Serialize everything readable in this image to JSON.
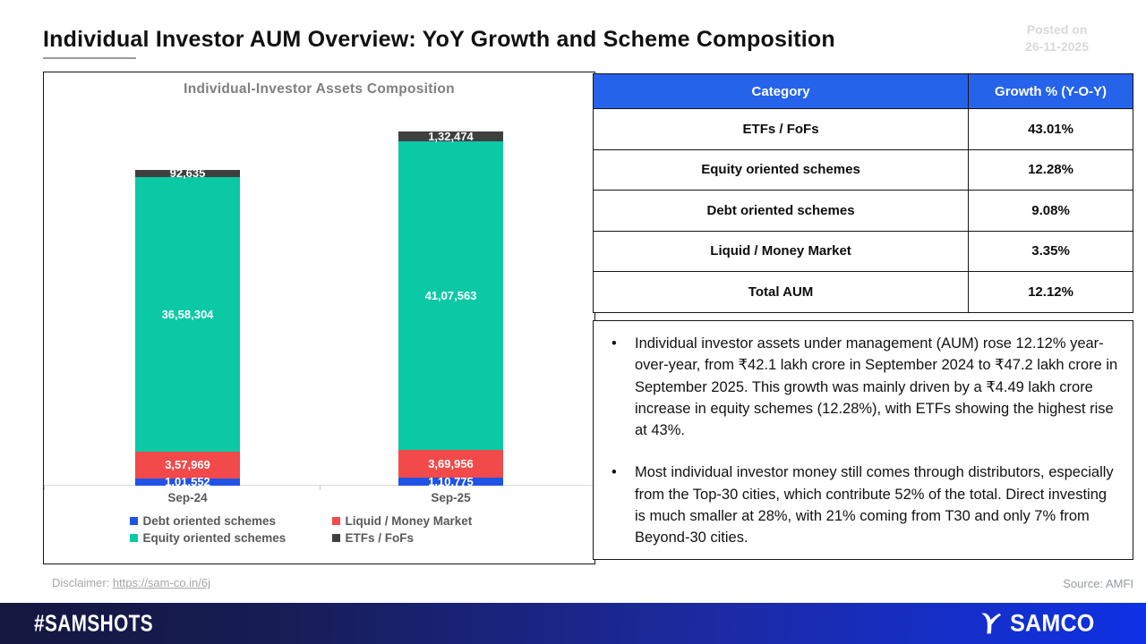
{
  "header": {
    "title": "Individual Investor AUM Overview: YoY Growth and Scheme Composition",
    "posted_on_label": "Posted on",
    "posted_on_date": "26-11-2025"
  },
  "chart_data": {
    "type": "bar",
    "stacked": true,
    "title": "Individual-Investor Assets Composition",
    "categories": [
      "Sep-24",
      "Sep-25"
    ],
    "series": [
      {
        "name": "Debt oriented schemes",
        "color": "#1f53e6",
        "values": [
          101552,
          110775
        ],
        "labels": [
          "1,01,552",
          "1,10,775"
        ]
      },
      {
        "name": "Liquid / Money Market",
        "color": "#f24a4a",
        "values": [
          357969,
          369956
        ],
        "labels": [
          "3,57,969",
          "3,69,956"
        ]
      },
      {
        "name": "Equity oriented schemes",
        "color": "#0cc9a6",
        "values": [
          3658304,
          4107563
        ],
        "labels": [
          "36,58,304",
          "41,07,563"
        ]
      },
      {
        "name": "ETFs / FoFs",
        "color": "#3f3f3f",
        "values": [
          92635,
          132474
        ],
        "labels": [
          "92,635",
          "1,32,474"
        ]
      }
    ],
    "totals": [
      4210460,
      4720768
    ],
    "y_axis_visible": false,
    "legend_position": "bottom"
  },
  "table": {
    "header_bg": "#2563eb",
    "headers": [
      "Category",
      "Growth % (Y-O-Y)"
    ],
    "rows": [
      [
        "ETFs / FoFs",
        "43.01%"
      ],
      [
        "Equity oriented schemes",
        "12.28%"
      ],
      [
        "Debt oriented schemes",
        "9.08%"
      ],
      [
        "Liquid / Money Market",
        "3.35%"
      ],
      [
        "Total AUM",
        "12.12%"
      ]
    ]
  },
  "bullet_char": "•",
  "bullets": [
    "Individual investor assets under management (AUM) rose 12.12% year-over-year, from ₹42.1 lakh crore in September 2024 to ₹47.2 lakh crore in September 2025. This growth was mainly driven by a ₹4.49 lakh crore increase in equity schemes (12.28%), with ETFs showing the highest rise at 43%.",
    "Most individual investor money still comes through distributors, especially from the Top-30 cities, which contribute 52% of the total. Direct investing is much smaller at 28%, with 21% coming from T30 and only 7% from Beyond-30 cities."
  ],
  "footnote": {
    "disclaimer_label": "Disclaimer: ",
    "disclaimer_link": "https://sam-co.in/6j",
    "source": "Source: AMFI"
  },
  "footer": {
    "hashtag": "#SAMSHOTS",
    "brand": "SAMCO"
  }
}
